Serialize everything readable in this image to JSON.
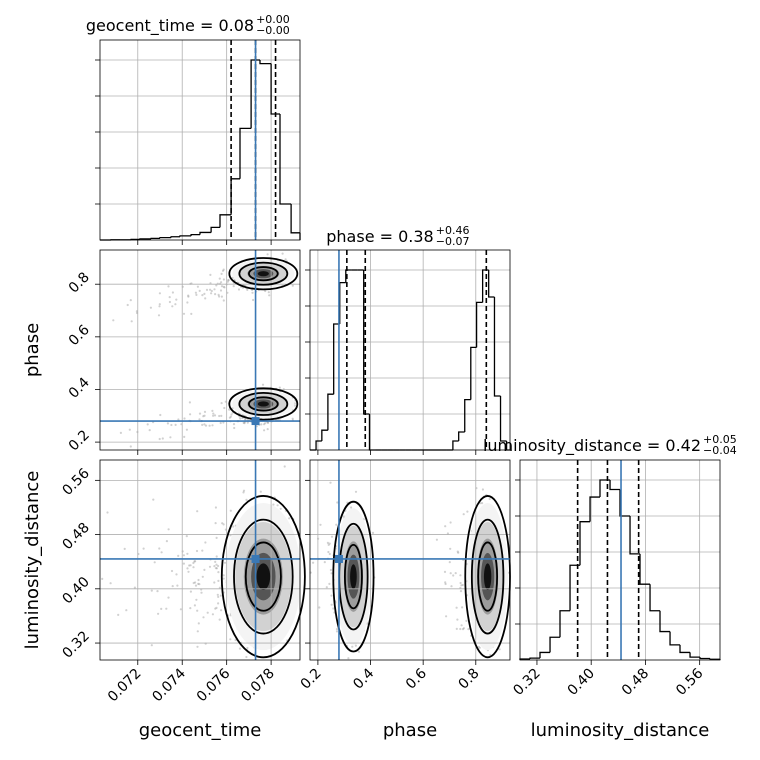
{
  "chart_data": {
    "type": "corner",
    "parameters": [
      "geocent_time",
      "phase",
      "luminosity_distance"
    ],
    "axis_labels": [
      "geocent_time",
      "phase",
      "luminosity_distance"
    ],
    "axis_ranges": {
      "geocent_time": [
        0.0703,
        0.0793
      ],
      "phase": [
        0.17,
        0.93
      ],
      "luminosity_distance": [
        0.295,
        0.59
      ]
    },
    "ticks": {
      "geocent_time": {
        "values": [
          0.072,
          0.074,
          0.076,
          0.078
        ],
        "labels": [
          "0.072",
          "0.074",
          "0.076",
          "0.078"
        ]
      },
      "phase": {
        "values": [
          0.2,
          0.4,
          0.6,
          0.8
        ],
        "labels": [
          "0.2",
          "0.4",
          "0.6",
          "0.8"
        ]
      },
      "luminosity_distance": {
        "values": [
          0.32,
          0.4,
          0.48,
          0.56
        ],
        "labels": [
          "0.32",
          "0.40",
          "0.48",
          "0.56"
        ]
      }
    },
    "truths": {
      "geocent_time": 0.0773,
      "phase": 0.28,
      "luminosity_distance": 0.444
    },
    "titles": [
      {
        "param": "geocent_time",
        "text": "geocent_time = 0.08",
        "plus": "+0.00",
        "minus": "−0.00"
      },
      {
        "param": "phase",
        "text": "phase = 0.38",
        "plus": "+0.46",
        "minus": "−0.07"
      },
      {
        "param": "luminosity_distance",
        "text": "luminosity_distance = 0.42",
        "plus": "+0.05",
        "minus": "−0.04"
      }
    ],
    "quantiles": {
      "geocent_time": [
        0.0762,
        0.0773,
        0.0782
      ],
      "phase": [
        0.31,
        0.38,
        0.84
      ],
      "luminosity_distance": [
        0.38,
        0.424,
        0.47
      ]
    },
    "histograms": {
      "geocent_time": {
        "edges": [
          0.0703,
          0.0708,
          0.0712,
          0.0717,
          0.0721,
          0.0726,
          0.073,
          0.0735,
          0.0739,
          0.0744,
          0.0748,
          0.0753,
          0.0757,
          0.0762,
          0.0766,
          0.0771,
          0.0775,
          0.078,
          0.0784,
          0.0789,
          0.0793
        ],
        "counts": [
          0,
          1,
          1,
          3,
          6,
          9,
          13,
          18,
          23,
          30,
          42,
          70,
          140,
          340,
          620,
          1000,
          980,
          700,
          200,
          40
        ]
      },
      "phase": {
        "edges": [
          0.17,
          0.193,
          0.215,
          0.238,
          0.26,
          0.283,
          0.306,
          0.328,
          0.351,
          0.374,
          0.396,
          0.419,
          0.441,
          0.464,
          0.487,
          0.509,
          0.532,
          0.555,
          0.577,
          0.6,
          0.622,
          0.645,
          0.668,
          0.69,
          0.713,
          0.735,
          0.758,
          0.781,
          0.803,
          0.826,
          0.849,
          0.871,
          0.894,
          0.917,
          0.93
        ],
        "counts": [
          0,
          50,
          110,
          310,
          700,
          930,
          1000,
          1000,
          1000,
          200,
          0,
          0,
          0,
          0,
          0,
          0,
          0,
          0,
          0,
          0,
          0,
          0,
          0,
          0,
          50,
          100,
          280,
          570,
          820,
          1000,
          850,
          300,
          50,
          0
        ]
      },
      "luminosity_distance": {
        "edges": [
          0.295,
          0.3098,
          0.3245,
          0.3393,
          0.354,
          0.3688,
          0.3835,
          0.3983,
          0.413,
          0.4278,
          0.4425,
          0.4573,
          0.472,
          0.4868,
          0.5015,
          0.5163,
          0.531,
          0.5458,
          0.5605,
          0.5753,
          0.59
        ],
        "counts": [
          5,
          10,
          40,
          120,
          260,
          500,
          730,
          860,
          950,
          900,
          760,
          560,
          400,
          260,
          150,
          80,
          40,
          15,
          8,
          4
        ]
      }
    },
    "posterior_modes": [
      {
        "param": "phase",
        "peaks": [
          0.31,
          0.84
        ]
      }
    ]
  }
}
